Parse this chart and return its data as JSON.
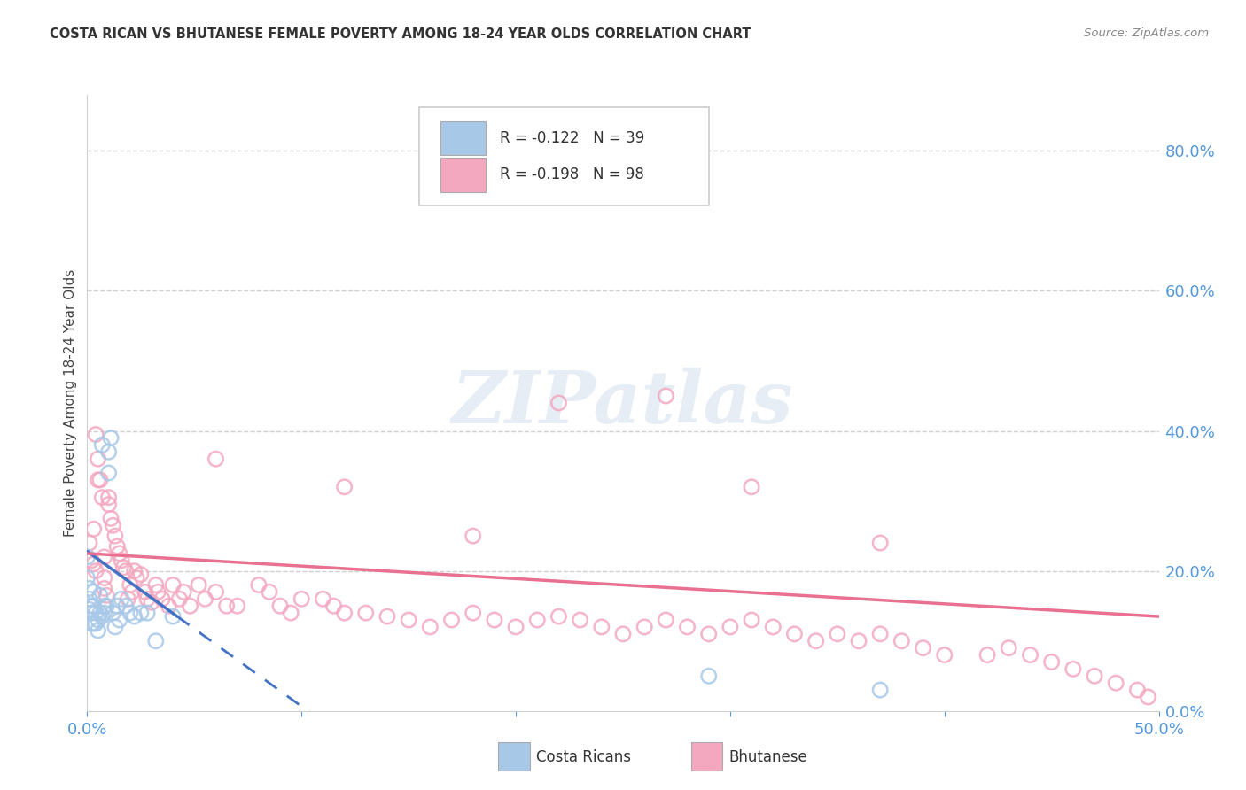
{
  "title": "COSTA RICAN VS BHUTANESE FEMALE POVERTY AMONG 18-24 YEAR OLDS CORRELATION CHART",
  "source": "Source: ZipAtlas.com",
  "ylabel": "Female Poverty Among 18-24 Year Olds",
  "xlim": [
    0.0,
    0.5
  ],
  "ylim": [
    0.0,
    0.88
  ],
  "right_yticks": [
    0.0,
    0.2,
    0.4,
    0.6,
    0.8
  ],
  "right_yticklabels": [
    "0.0%",
    "20.0%",
    "40.0%",
    "60.0%",
    "80.0%"
  ],
  "grid_yticks": [
    0.2,
    0.4,
    0.6,
    0.8
  ],
  "legend_cr_r": "-0.122",
  "legend_cr_n": "39",
  "legend_bh_r": "-0.198",
  "legend_bh_n": "98",
  "cr_color": "#a8c8e8",
  "bh_color": "#f4a8c0",
  "cr_line_color": "#4472c4",
  "bh_line_color": "#e87090",
  "watermark_text": "ZIPatlas",
  "background": "#ffffff",
  "costa_rica_x": [
    0.0,
    0.0,
    0.001,
    0.001,
    0.001,
    0.002,
    0.002,
    0.002,
    0.003,
    0.003,
    0.003,
    0.004,
    0.004,
    0.005,
    0.005,
    0.006,
    0.006,
    0.007,
    0.007,
    0.008,
    0.008,
    0.009,
    0.01,
    0.01,
    0.011,
    0.012,
    0.013,
    0.014,
    0.015,
    0.016,
    0.018,
    0.02,
    0.022,
    0.025,
    0.028,
    0.032,
    0.04,
    0.29,
    0.37
  ],
  "costa_rica_y": [
    0.22,
    0.19,
    0.175,
    0.16,
    0.145,
    0.15,
    0.14,
    0.125,
    0.17,
    0.15,
    0.125,
    0.14,
    0.125,
    0.13,
    0.115,
    0.165,
    0.14,
    0.135,
    0.38,
    0.15,
    0.14,
    0.15,
    0.37,
    0.34,
    0.39,
    0.14,
    0.12,
    0.15,
    0.13,
    0.16,
    0.15,
    0.14,
    0.135,
    0.14,
    0.14,
    0.1,
    0.135,
    0.05,
    0.03
  ],
  "bhutan_x": [
    0.001,
    0.002,
    0.003,
    0.004,
    0.004,
    0.005,
    0.006,
    0.007,
    0.008,
    0.008,
    0.009,
    0.01,
    0.01,
    0.011,
    0.012,
    0.013,
    0.014,
    0.015,
    0.016,
    0.017,
    0.018,
    0.019,
    0.02,
    0.021,
    0.022,
    0.023,
    0.025,
    0.027,
    0.028,
    0.03,
    0.032,
    0.033,
    0.035,
    0.038,
    0.04,
    0.043,
    0.045,
    0.048,
    0.052,
    0.055,
    0.06,
    0.065,
    0.07,
    0.08,
    0.085,
    0.09,
    0.095,
    0.1,
    0.11,
    0.115,
    0.12,
    0.13,
    0.14,
    0.15,
    0.16,
    0.17,
    0.18,
    0.19,
    0.2,
    0.21,
    0.22,
    0.23,
    0.24,
    0.25,
    0.26,
    0.27,
    0.28,
    0.29,
    0.3,
    0.31,
    0.32,
    0.33,
    0.34,
    0.35,
    0.36,
    0.37,
    0.38,
    0.39,
    0.4,
    0.42,
    0.43,
    0.44,
    0.45,
    0.46,
    0.47,
    0.48,
    0.49,
    0.495,
    0.06,
    0.12,
    0.18,
    0.22,
    0.27,
    0.31,
    0.37,
    0.003,
    0.005,
    0.008
  ],
  "bhutan_y": [
    0.24,
    0.215,
    0.21,
    0.395,
    0.2,
    0.36,
    0.33,
    0.305,
    0.19,
    0.175,
    0.165,
    0.305,
    0.295,
    0.275,
    0.265,
    0.25,
    0.235,
    0.225,
    0.215,
    0.205,
    0.2,
    0.16,
    0.18,
    0.17,
    0.2,
    0.19,
    0.195,
    0.17,
    0.16,
    0.155,
    0.18,
    0.17,
    0.16,
    0.15,
    0.18,
    0.16,
    0.17,
    0.15,
    0.18,
    0.16,
    0.17,
    0.15,
    0.15,
    0.18,
    0.17,
    0.15,
    0.14,
    0.16,
    0.16,
    0.15,
    0.14,
    0.14,
    0.135,
    0.13,
    0.12,
    0.13,
    0.14,
    0.13,
    0.12,
    0.13,
    0.135,
    0.13,
    0.12,
    0.11,
    0.12,
    0.13,
    0.12,
    0.11,
    0.12,
    0.13,
    0.12,
    0.11,
    0.1,
    0.11,
    0.1,
    0.11,
    0.1,
    0.09,
    0.08,
    0.08,
    0.09,
    0.08,
    0.07,
    0.06,
    0.05,
    0.04,
    0.03,
    0.02,
    0.36,
    0.32,
    0.25,
    0.44,
    0.45,
    0.32,
    0.24,
    0.26,
    0.33,
    0.22
  ]
}
